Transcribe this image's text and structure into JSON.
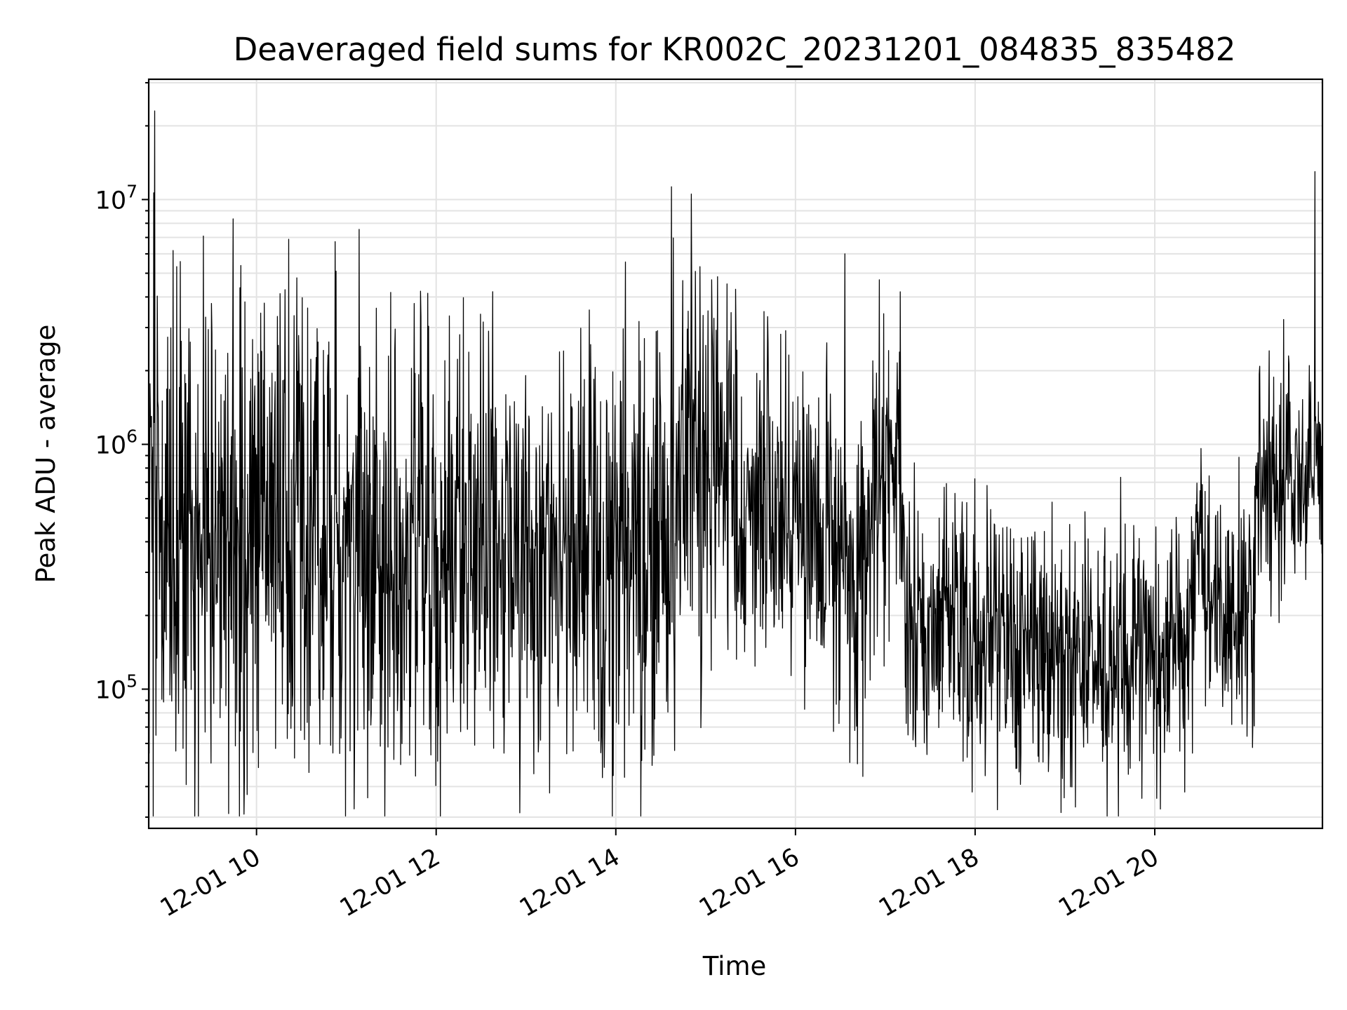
{
  "chart_data": {
    "type": "line",
    "title": "Deaveraged field sums for KR002C_20231201_084835_835482",
    "xlabel": "Time",
    "ylabel": "Peak ADU - average",
    "xscale": "time",
    "yscale": "log",
    "xlim": [
      "2023-12-01 08:48",
      "2023-12-01 21:52"
    ],
    "ylim": [
      27000,
      31000000
    ],
    "grid": true,
    "color": "#000000",
    "x_ticks": [
      {
        "time": "2023-12-01 10:00",
        "label": "12-01 10"
      },
      {
        "time": "2023-12-01 12:00",
        "label": "12-01 12"
      },
      {
        "time": "2023-12-01 14:00",
        "label": "12-01 14"
      },
      {
        "time": "2023-12-01 16:00",
        "label": "12-01 16"
      },
      {
        "time": "2023-12-01 18:00",
        "label": "12-01 18"
      },
      {
        "time": "2023-12-01 20:00",
        "label": "12-01 20"
      }
    ],
    "y_ticks": [
      {
        "value": 100000,
        "base": "10",
        "exp": "5"
      },
      {
        "value": 1000000,
        "base": "10",
        "exp": "6"
      },
      {
        "value": 10000000,
        "base": "10",
        "exp": "7"
      }
    ],
    "series_profile": [
      {
        "time": "2023-12-01 08:48",
        "median": 300000,
        "spread": 0.55
      },
      {
        "time": "2023-12-01 09:10",
        "median": 380000,
        "spread": 0.5
      },
      {
        "time": "2023-12-01 10:30",
        "median": 450000,
        "spread": 0.5
      },
      {
        "time": "2023-12-01 12:00",
        "median": 430000,
        "spread": 0.45
      },
      {
        "time": "2023-12-01 13:30",
        "median": 330000,
        "spread": 0.45
      },
      {
        "time": "2023-12-01 14:30",
        "median": 450000,
        "spread": 0.5
      },
      {
        "time": "2023-12-01 15:00",
        "median": 800000,
        "spread": 0.42
      },
      {
        "time": "2023-12-01 16:00",
        "median": 580000,
        "spread": 0.35
      },
      {
        "time": "2023-12-01 16:40",
        "median": 250000,
        "spread": 0.35
      },
      {
        "time": "2023-12-01 17:00",
        "median": 800000,
        "spread": 0.3
      },
      {
        "time": "2023-12-01 17:12",
        "median": 650000,
        "spread": 0.3
      },
      {
        "time": "2023-12-01 17:14",
        "median": 190000,
        "spread": 0.25
      },
      {
        "time": "2023-12-01 18:00",
        "median": 165000,
        "spread": 0.27
      },
      {
        "time": "2023-12-01 19:00",
        "median": 140000,
        "spread": 0.25
      },
      {
        "time": "2023-12-01 20:00",
        "median": 130000,
        "spread": 0.25
      },
      {
        "time": "2023-12-01 20:25",
        "median": 200000,
        "spread": 0.25
      },
      {
        "time": "2023-12-01 20:30",
        "median": 450000,
        "spread": 0.2
      },
      {
        "time": "2023-12-01 20:38",
        "median": 200000,
        "spread": 0.25
      },
      {
        "time": "2023-12-01 21:06",
        "median": 180000,
        "spread": 0.25
      },
      {
        "time": "2023-12-01 21:08",
        "median": 750000,
        "spread": 0.25
      },
      {
        "time": "2023-12-01 21:52",
        "median": 700000,
        "spread": 0.22
      }
    ],
    "peaks": [
      {
        "time": "2023-12-01 08:52",
        "value": 23000000
      },
      {
        "time": "2023-12-01 11:20",
        "value": 3600000
      },
      {
        "time": "2023-12-01 12:35",
        "value": 2900000
      },
      {
        "time": "2023-12-01 15:04",
        "value": 4700000
      },
      {
        "time": "2023-12-01 15:20",
        "value": 4300000
      },
      {
        "time": "2023-12-01 16:33",
        "value": 6000000
      },
      {
        "time": "2023-12-01 16:56",
        "value": 4700000
      },
      {
        "time": "2023-12-01 17:10",
        "value": 4200000
      },
      {
        "time": "2023-12-01 21:47",
        "value": 13000000
      }
    ],
    "troughs": [
      {
        "time": "2023-12-01 13:50",
        "value": 55000
      },
      {
        "time": "2023-12-01 16:45",
        "value": 44000
      },
      {
        "time": "2023-12-01 19:07",
        "value": 33000
      },
      {
        "time": "2023-12-01 17:58",
        "value": 38000
      },
      {
        "time": "2023-12-01 20:20",
        "value": 38000
      }
    ]
  }
}
